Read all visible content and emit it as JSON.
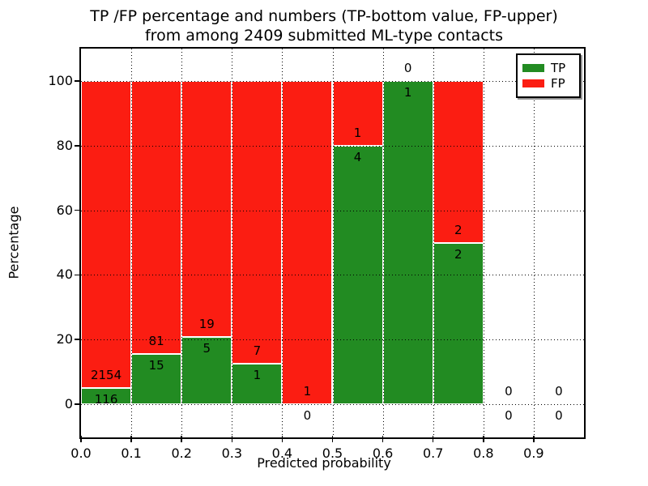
{
  "title": {
    "line1": "TP /FP percentage and numbers (TP-bottom value, FP-upper)",
    "line2": "from among 2409 submitted ML-type contacts"
  },
  "chart_data": {
    "type": "bar",
    "subtype": "stacked-100-percent",
    "title": "TP /FP percentage and numbers (TP-bottom value, FP-upper) from among 2409 submitted ML-type contacts",
    "xlabel": "Predicted probability",
    "ylabel": "Percentage",
    "bin_starts": [
      0.0,
      0.1,
      0.2,
      0.3,
      0.4,
      0.5,
      0.6,
      0.7,
      0.8,
      0.9
    ],
    "bin_width": 0.1,
    "series": [
      {
        "name": "TP",
        "color": "#228b22",
        "counts": [
          116,
          15,
          5,
          1,
          0,
          4,
          1,
          2,
          0,
          0
        ]
      },
      {
        "name": "FP",
        "color": "#fb1d12",
        "counts": [
          2154,
          81,
          19,
          7,
          1,
          1,
          0,
          2,
          0,
          0
        ]
      }
    ],
    "tp_percent_shown": [
      5.1,
      15.6,
      20.8,
      12.5,
      0.0,
      80.0,
      100.0,
      50.0,
      null,
      null
    ],
    "total_contacts": 2409,
    "xticks": [
      "0.0",
      "0.1",
      "0.2",
      "0.3",
      "0.4",
      "0.5",
      "0.6",
      "0.7",
      "0.8",
      "0.9"
    ],
    "yticks": [
      0,
      20,
      40,
      60,
      80,
      100
    ],
    "xlim": [
      0.0,
      1.0
    ],
    "ylim": [
      -10.3,
      110.0
    ],
    "grid": "dotted-both-axes-on-top",
    "legend": {
      "position": "upper-right",
      "entries": [
        {
          "label": "TP",
          "color": "#228b22"
        },
        {
          "label": "FP",
          "color": "#fb1d12"
        }
      ]
    }
  }
}
